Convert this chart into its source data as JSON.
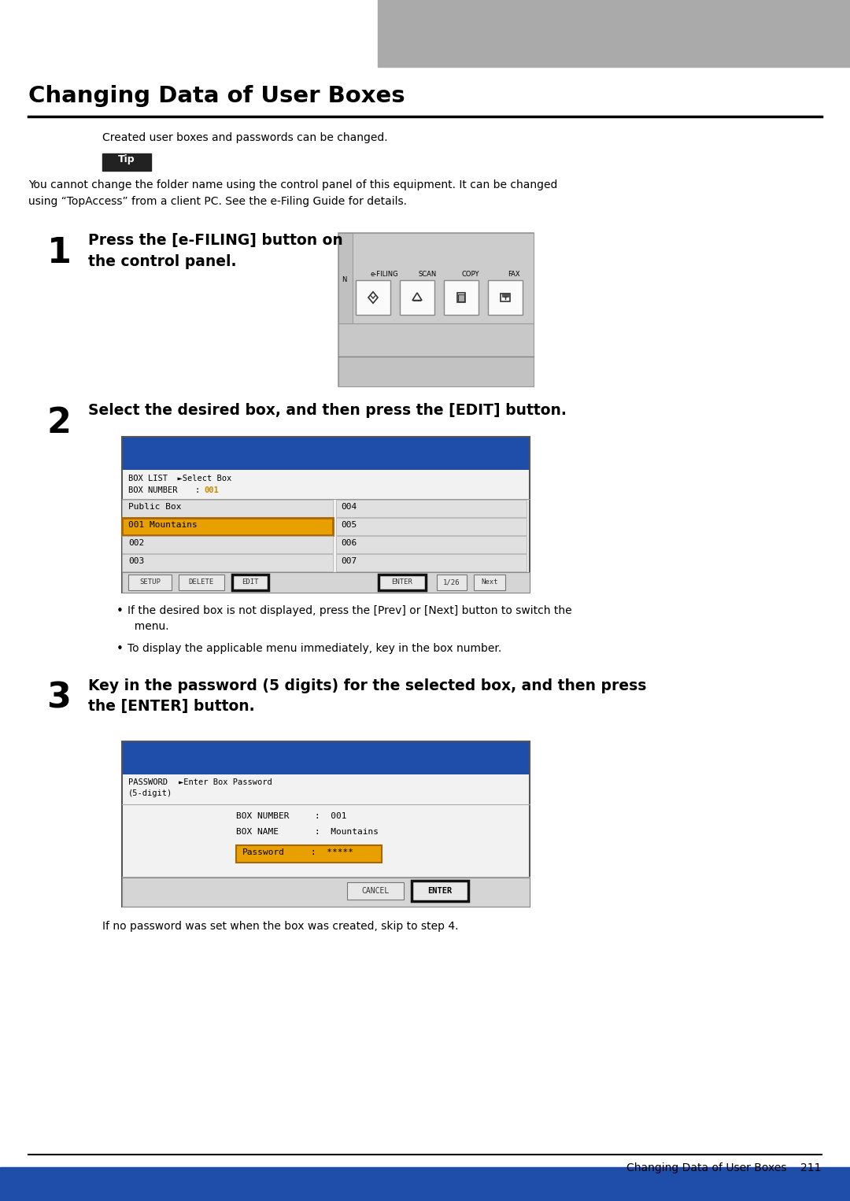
{
  "page_title": "Changing Data of User Boxes",
  "header_gray": "#AAAAAA",
  "bg_color": "#FFFFFF",
  "title_font_size": 20,
  "tip_bg": "#222222",
  "tip_text_color": "#FFFFFF",
  "tip_body_text": "You cannot change the folder name using the control panel of this equipment. It can be changed\nusing “TopAccess” from a client PC. See the e-Filing Guide for details.",
  "intro_text": "Created user boxes and passwords can be changed.",
  "step1_num": "1",
  "step1_text": "Press the [e-FILING] button on\nthe control panel.",
  "step2_num": "2",
  "step2_text": "Select the desired box, and then press the [EDIT] button.",
  "step2_bullets": [
    "If the desired box is not displayed, press the [Prev] or [Next] button to switch the\n  menu.",
    "To display the applicable menu immediately, key in the box number."
  ],
  "step3_num": "3",
  "step3_text": "Key in the password (5 digits) for the selected box, and then press\nthe [ENTER] button.",
  "step3_footer": "If no password was set when the box was created, skip to step 4.",
  "footer_text": "Changing Data of User Boxes    211",
  "screen_blue": "#1E4DAA",
  "highlight_orange": "#E8A000",
  "mono_font": "monospace"
}
